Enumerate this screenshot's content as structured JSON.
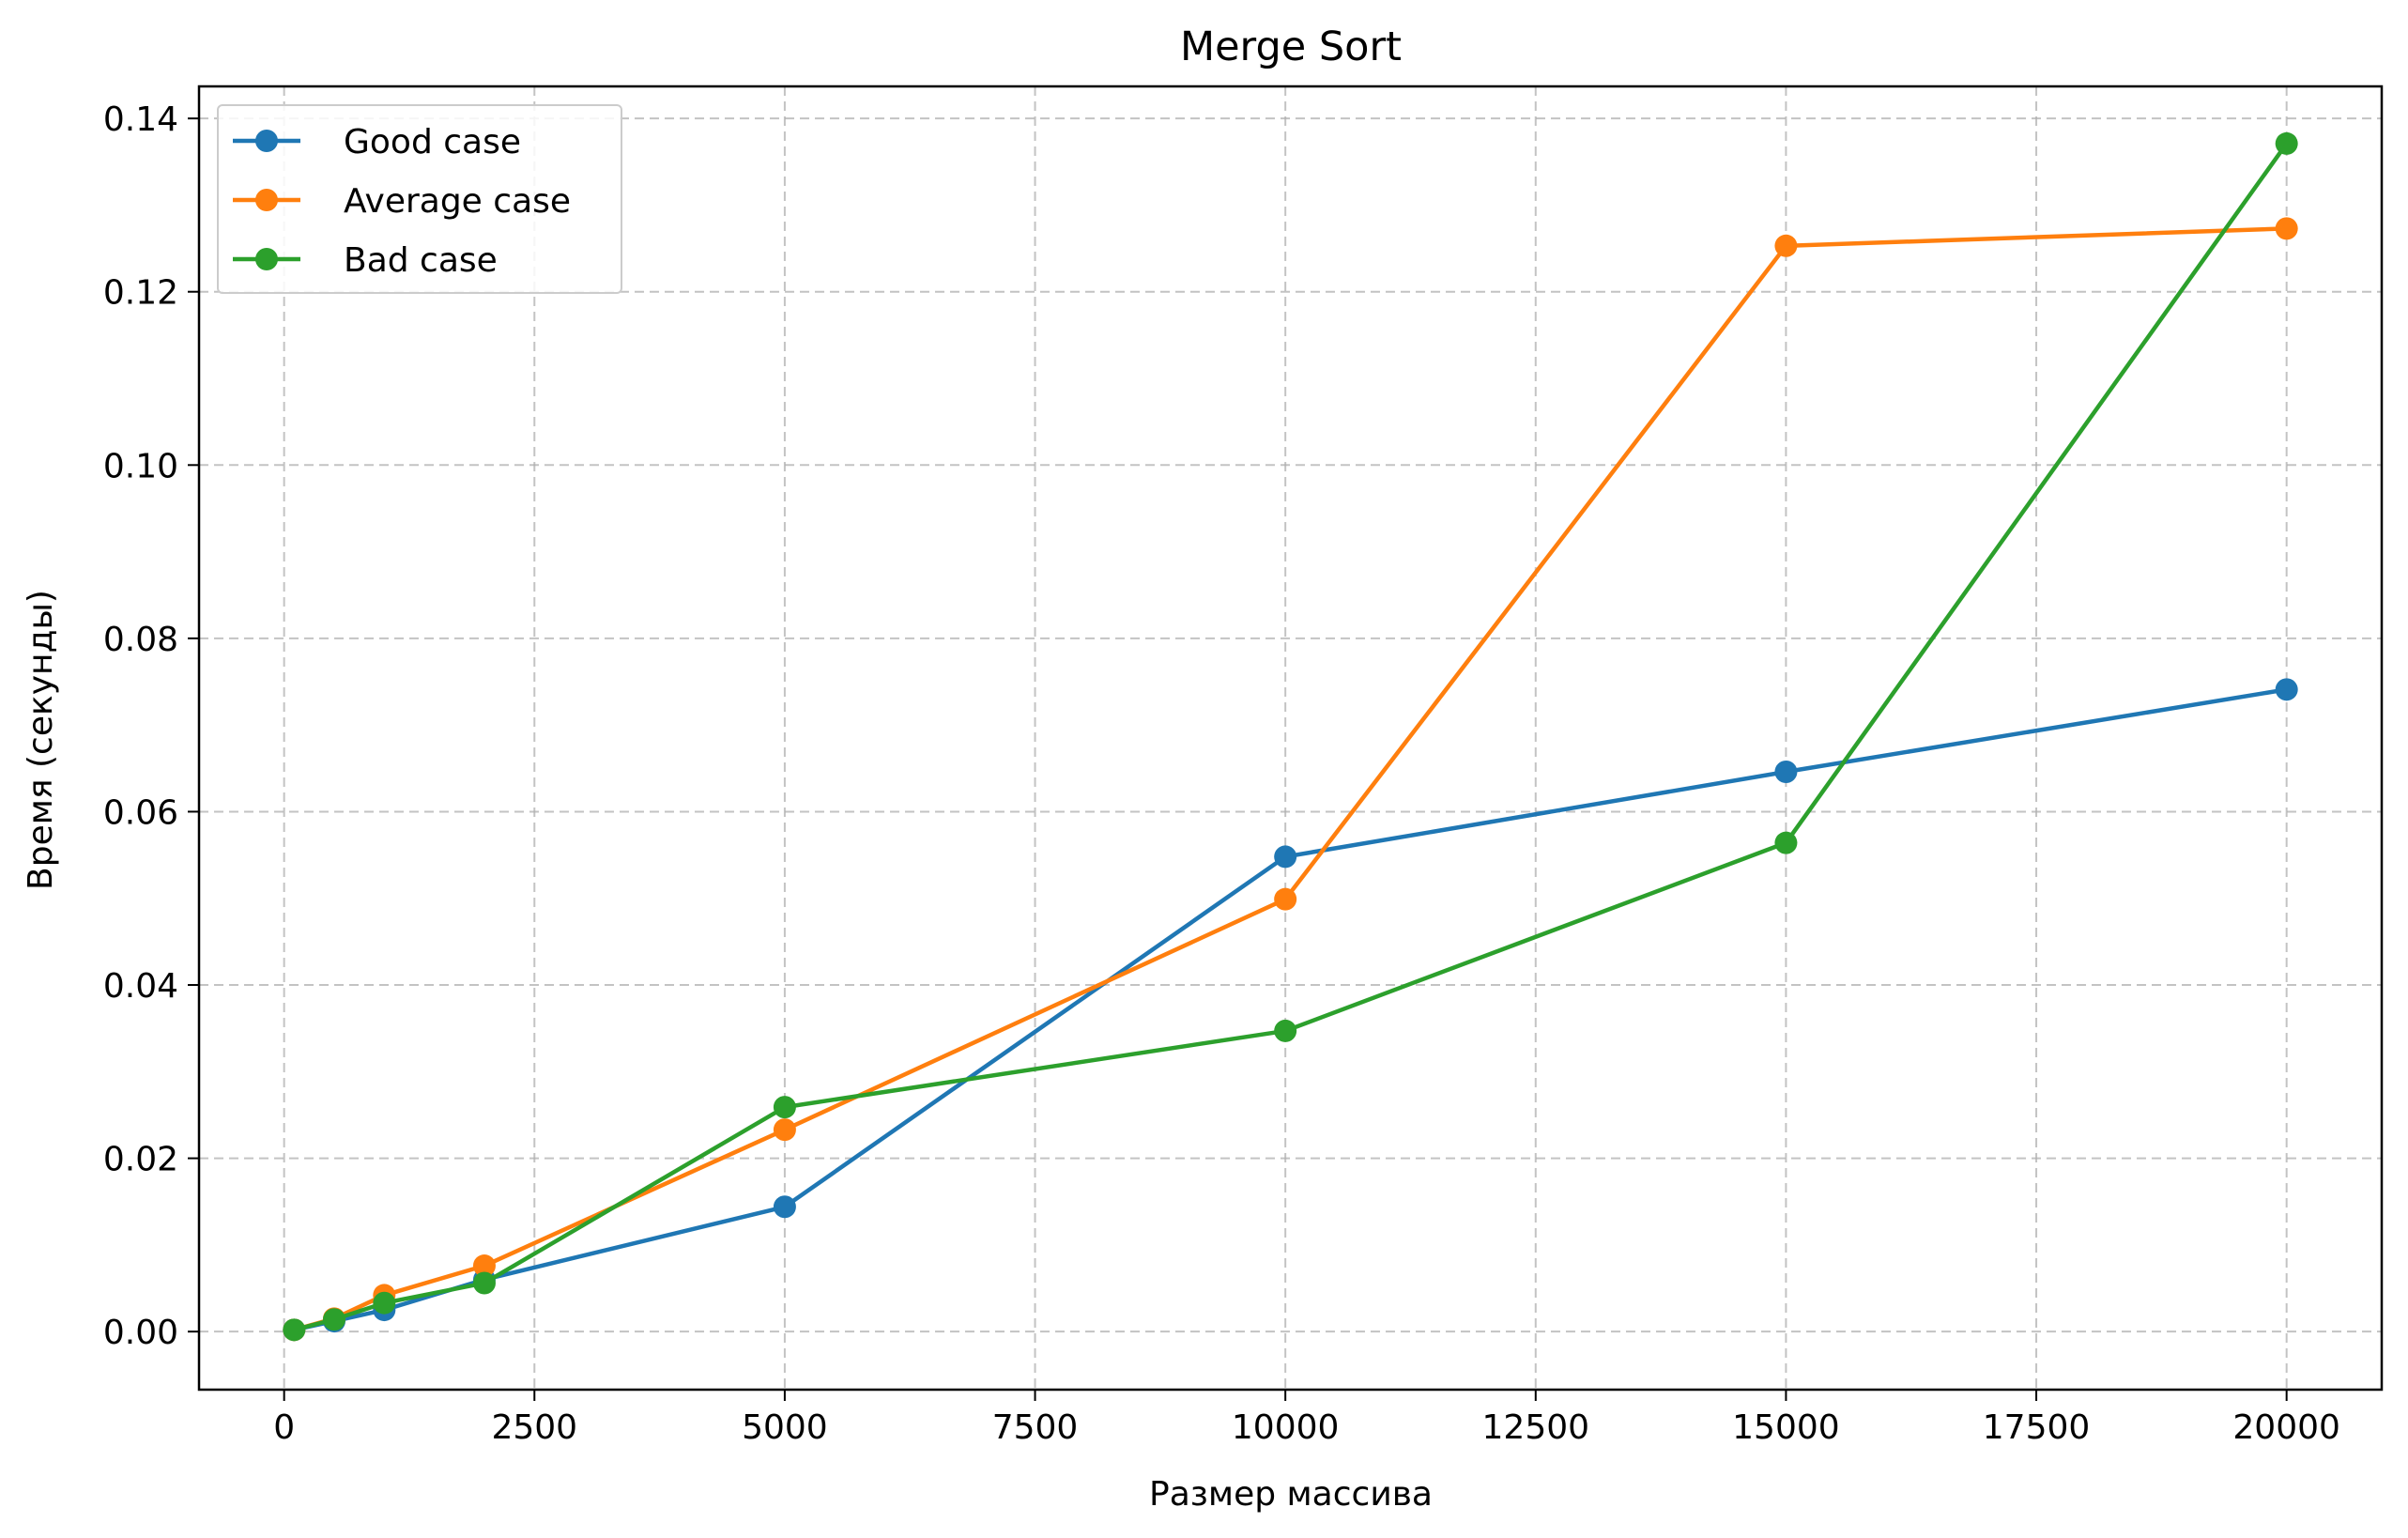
{
  "chart_data": {
    "type": "line",
    "title": "Merge Sort",
    "xlabel": "Размер массива",
    "ylabel": "Время (секунды)",
    "x": [
      100,
      500,
      1000,
      2000,
      5000,
      10000,
      15000,
      20000
    ],
    "series": [
      {
        "name": "Good case",
        "color": "#1f77b4",
        "values": [
          0.0002,
          0.0012,
          0.0025,
          0.006,
          0.0144,
          0.0548,
          0.0646,
          0.0741
        ]
      },
      {
        "name": "Average case",
        "color": "#ff7f0e",
        "values": [
          0.0002,
          0.0015,
          0.0042,
          0.0076,
          0.0233,
          0.0499,
          0.1253,
          0.1273
        ]
      },
      {
        "name": "Bad case",
        "color": "#2ca02c",
        "values": [
          0.0002,
          0.0014,
          0.0033,
          0.0056,
          0.0259,
          0.0347,
          0.0564,
          0.1371
        ]
      }
    ],
    "xlim": [
      -850,
      20950
    ],
    "ylim": [
      -0.0067,
      0.1437
    ],
    "xticks": [
      0,
      2500,
      5000,
      7500,
      10000,
      12500,
      15000,
      17500,
      20000
    ],
    "xtick_labels": [
      "0",
      "2500",
      "5000",
      "7500",
      "10000",
      "12500",
      "15000",
      "17500",
      "20000"
    ],
    "yticks": [
      0.0,
      0.02,
      0.04,
      0.06,
      0.08,
      0.1,
      0.12,
      0.14
    ],
    "ytick_labels": [
      "0.00",
      "0.02",
      "0.04",
      "0.06",
      "0.08",
      "0.10",
      "0.12",
      "0.14"
    ],
    "grid": true,
    "legend_position": "top-left"
  }
}
